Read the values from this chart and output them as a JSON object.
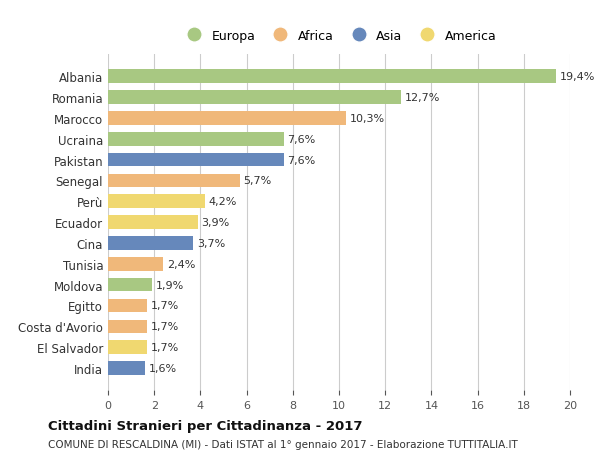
{
  "countries": [
    "Albania",
    "Romania",
    "Marocco",
    "Ucraina",
    "Pakistan",
    "Senegal",
    "Perù",
    "Ecuador",
    "Cina",
    "Tunisia",
    "Moldova",
    "Egitto",
    "Costa d'Avorio",
    "El Salvador",
    "India"
  ],
  "values": [
    19.4,
    12.7,
    10.3,
    7.6,
    7.6,
    5.7,
    4.2,
    3.9,
    3.7,
    2.4,
    1.9,
    1.7,
    1.7,
    1.7,
    1.6
  ],
  "continents": [
    "Europa",
    "Europa",
    "Africa",
    "Europa",
    "Asia",
    "Africa",
    "America",
    "America",
    "Asia",
    "Africa",
    "Europa",
    "Africa",
    "Africa",
    "America",
    "Asia"
  ],
  "continent_colors": {
    "Europa": "#a8c882",
    "Africa": "#f0b87a",
    "Asia": "#6688bb",
    "America": "#f0d870"
  },
  "title": "Cittadini Stranieri per Cittadinanza - 2017",
  "subtitle": "COMUNE DI RESCALDINA (MI) - Dati ISTAT al 1° gennaio 2017 - Elaborazione TUTTITALIA.IT",
  "xlim": [
    0,
    20
  ],
  "xticks": [
    0,
    2,
    4,
    6,
    8,
    10,
    12,
    14,
    16,
    18,
    20
  ],
  "background_color": "#ffffff",
  "grid_color": "#cccccc",
  "legend_order": [
    "Europa",
    "Africa",
    "Asia",
    "America"
  ]
}
